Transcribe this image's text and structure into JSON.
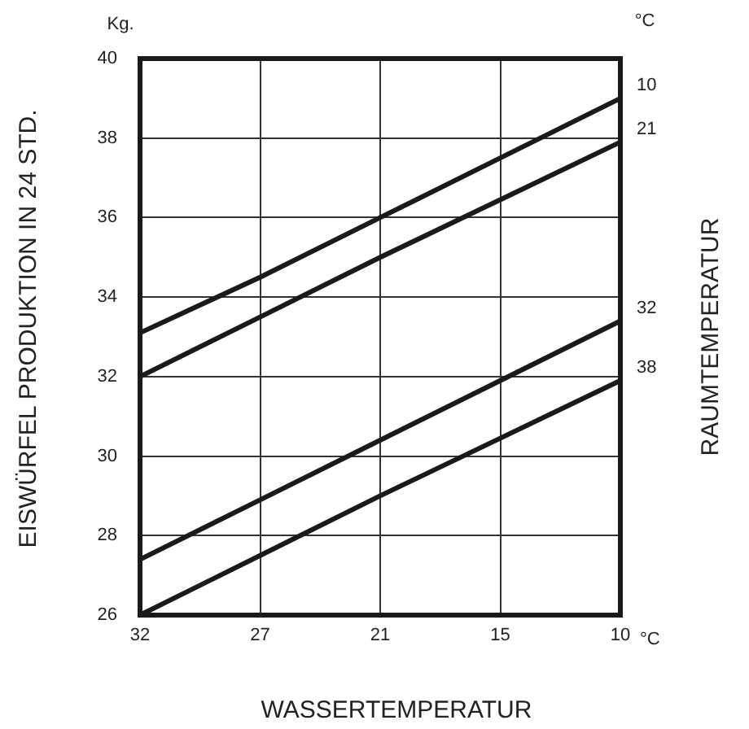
{
  "chart_data": {
    "type": "line",
    "ylabel": "EISWÜRFEL PRODUKTION IN 24 STD.",
    "xlabel": "WASSERTEMPERATUR",
    "y2label": "RAUMTEMPERATUR",
    "legend_title": "°C",
    "annotations": [
      "Kg.",
      "°C"
    ],
    "categories": [
      "32",
      "27",
      "21",
      "15",
      "10"
    ],
    "series": [
      {
        "name": "10",
        "color": "#1a1a1a",
        "values": [
          33.1,
          34.5,
          36,
          37.5,
          39
        ]
      },
      {
        "name": "21",
        "color": "#1a1a1a",
        "values": [
          32,
          33.5,
          35,
          36.45,
          37.9
        ]
      },
      {
        "name": "32",
        "color": "#1a1a1a",
        "values": [
          27.4,
          28.9,
          30.4,
          31.9,
          33.4
        ]
      },
      {
        "name": "38",
        "color": "#1a1a1a",
        "values": [
          26,
          27.5,
          29,
          30.45,
          31.9
        ]
      }
    ],
    "ylim": [
      26,
      40
    ],
    "yticks": [
      26,
      28,
      30,
      32,
      34,
      36,
      38,
      40
    ],
    "grid": true,
    "marker": "none",
    "line_style": "solid"
  }
}
